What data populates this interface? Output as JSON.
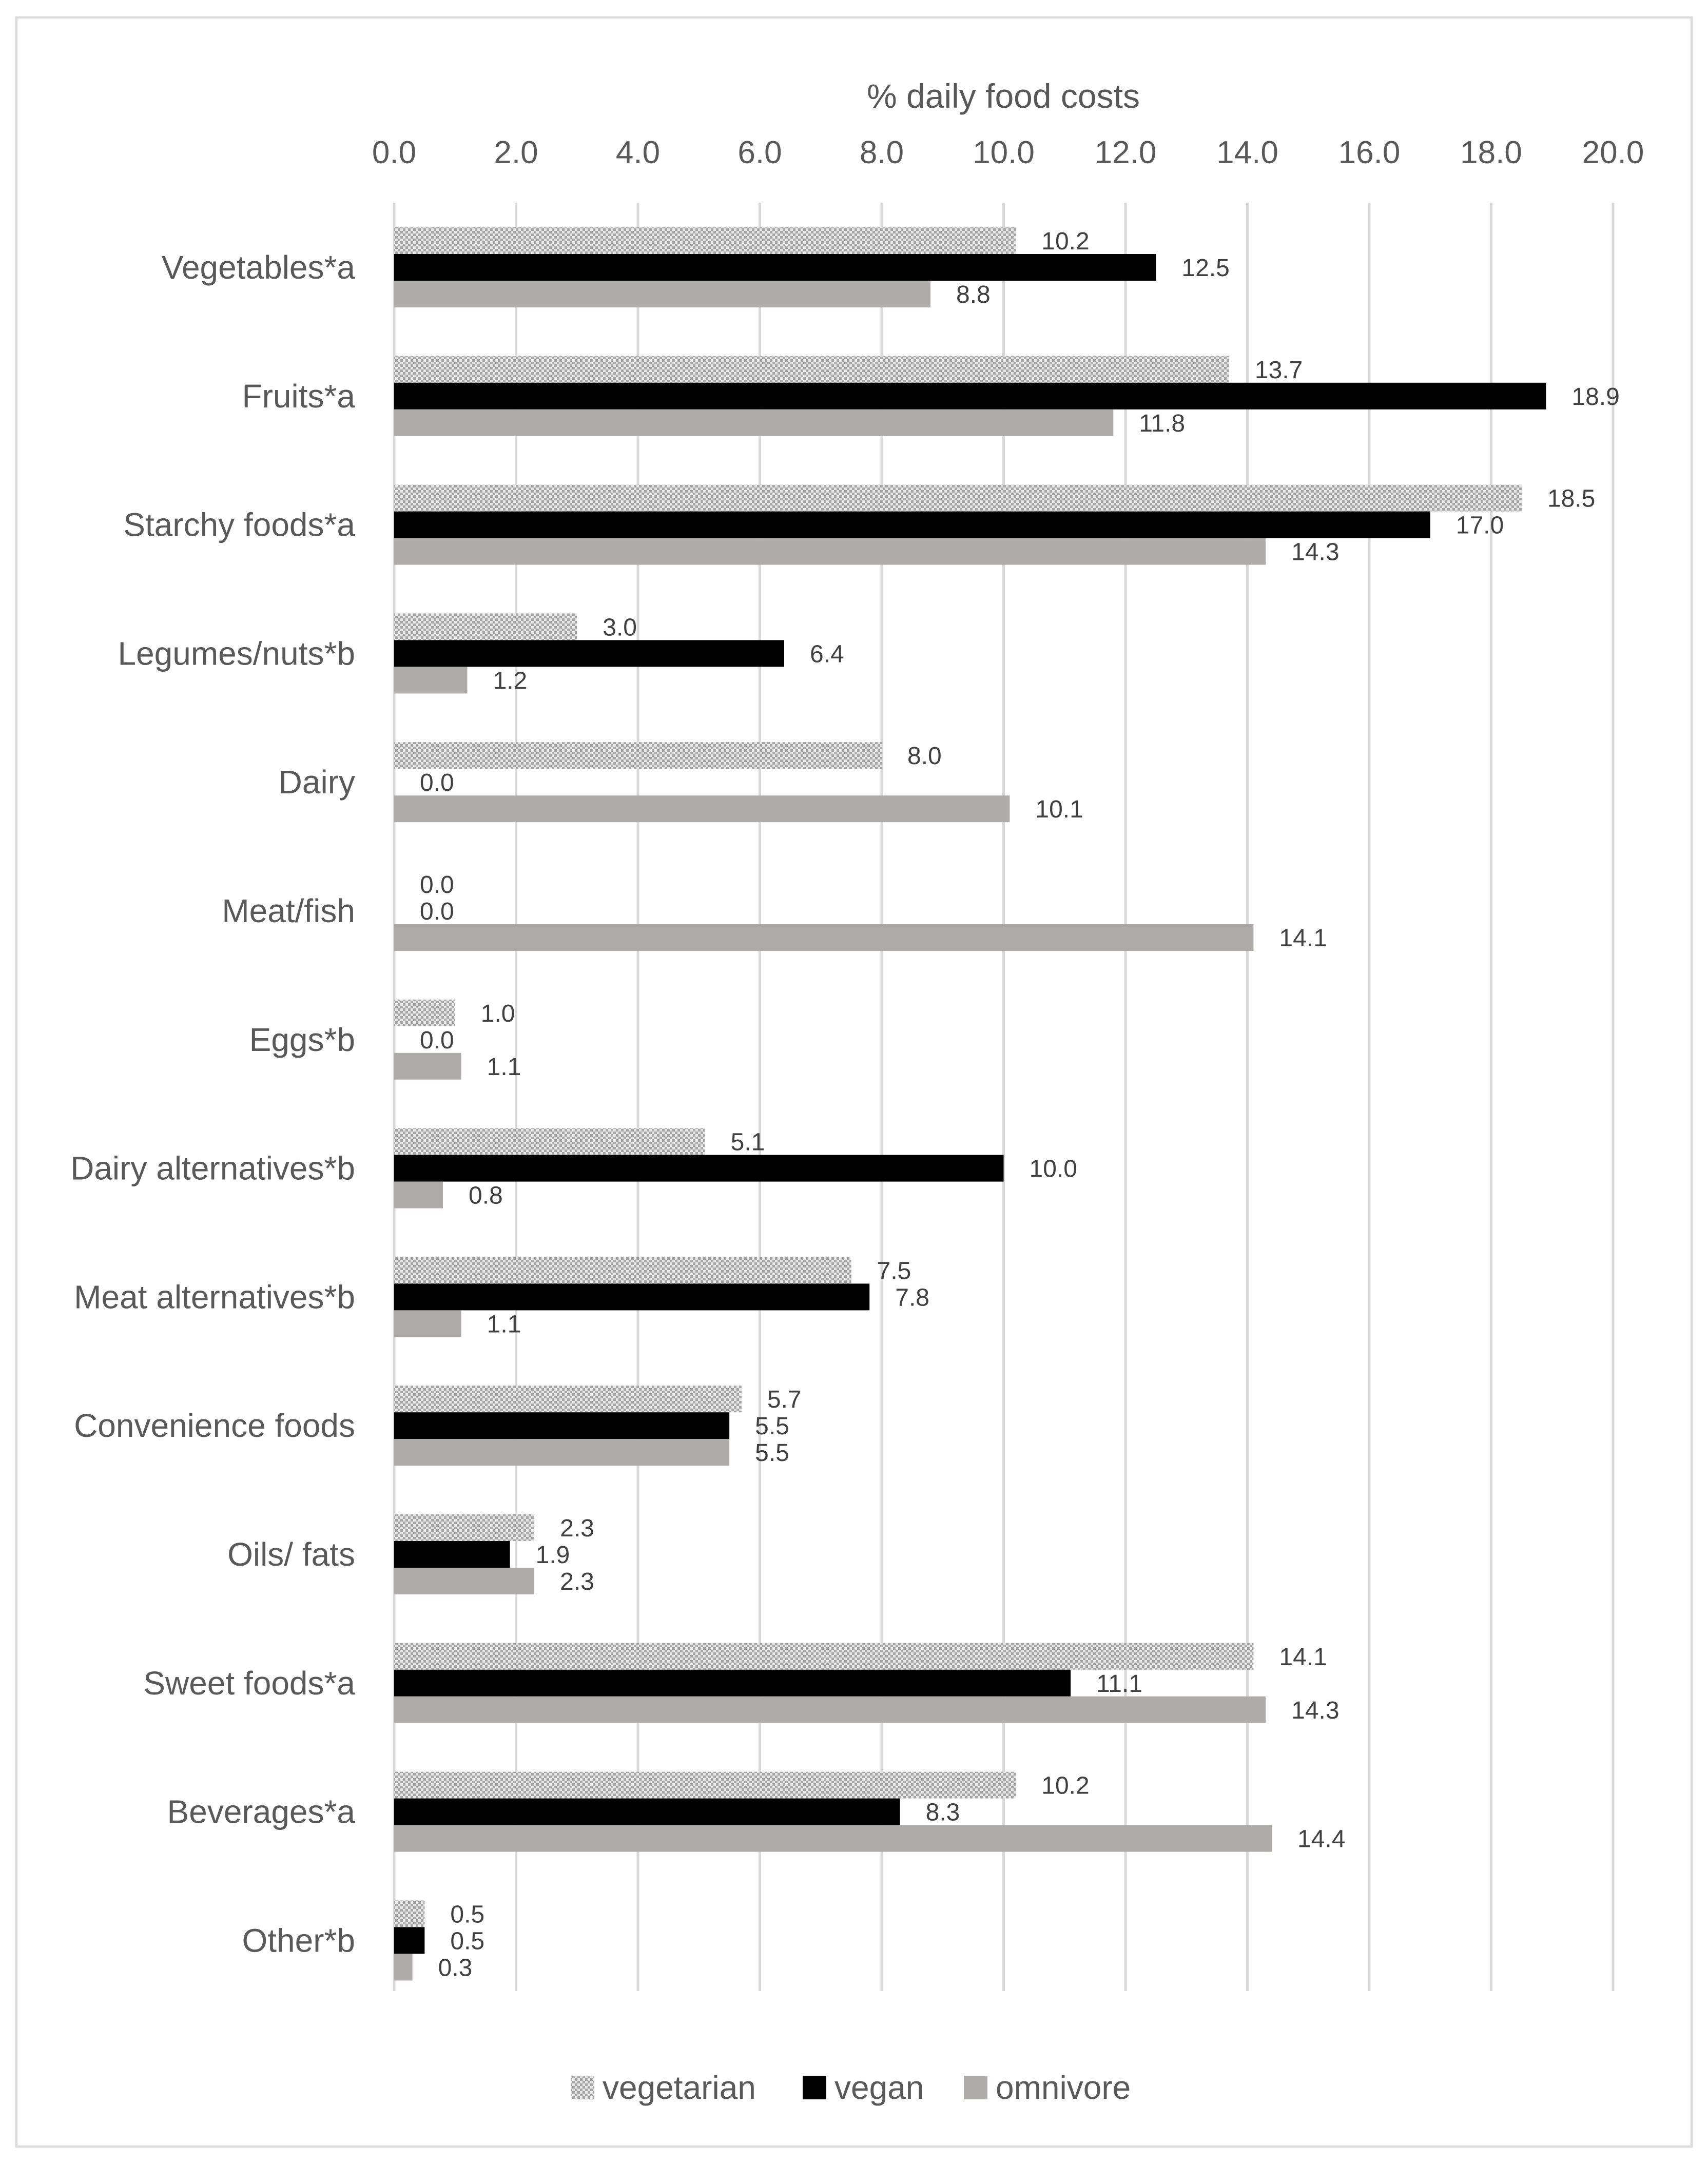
{
  "chart_data": {
    "type": "bar",
    "orientation": "horizontal",
    "title": "",
    "xlabel": "% daily food costs",
    "ylabel": "",
    "xlim": [
      0,
      20
    ],
    "x_ticks": [
      "0.0",
      "2.0",
      "4.0",
      "6.0",
      "8.0",
      "10.0",
      "12.0",
      "14.0",
      "16.0",
      "18.0",
      "20.0"
    ],
    "grid": true,
    "axis_position": "top",
    "legend_position": "bottom",
    "categories": [
      "Vegetables*a",
      "Fruits*a",
      "Starchy foods*a",
      "Legumes/nuts*b",
      "Dairy",
      "Meat/fish",
      "Eggs*b",
      "Dairy alternatives*b",
      "Meat alternatives*b",
      "Convenience foods",
      "Oils/ fats",
      "Sweet foods*a",
      "Beverages*a",
      "Other*b"
    ],
    "series": [
      {
        "name": "vegetarian",
        "color": "#c8c8c8",
        "pattern": "checker",
        "values": [
          10.2,
          13.7,
          18.5,
          3.0,
          8.0,
          0.0,
          1.0,
          5.1,
          7.5,
          5.7,
          2.3,
          14.1,
          10.2,
          0.5
        ],
        "labels": [
          "10.2",
          "13.7",
          "18.5",
          "3.0",
          "8.0",
          "0.0",
          "1.0",
          "5.1",
          "7.5",
          "5.7",
          "2.3",
          "14.1",
          "10.2",
          "0.5"
        ]
      },
      {
        "name": "vegan",
        "color": "#000000",
        "pattern": "solid",
        "values": [
          12.5,
          18.9,
          17.0,
          6.4,
          0.0,
          0.0,
          0.0,
          10.0,
          7.8,
          5.5,
          1.9,
          11.1,
          8.3,
          0.5
        ],
        "labels": [
          "12.5",
          "18.9",
          "17.0",
          "6.4",
          "0.0",
          "0.0",
          "0.0",
          "10.0",
          "7.8",
          "5.5",
          "1.9",
          "11.1",
          "8.3",
          "0.5"
        ]
      },
      {
        "name": "omnivore",
        "color": "#afabab",
        "pattern": "solid",
        "values": [
          8.8,
          11.8,
          14.3,
          1.2,
          10.1,
          14.1,
          1.1,
          0.8,
          1.1,
          5.5,
          2.3,
          14.3,
          14.4,
          0.3
        ],
        "labels": [
          "8.8",
          "11.8",
          "14.3",
          "1.2",
          "10.1",
          "14.1",
          "1.1",
          "0.8",
          "1.1",
          "5.5",
          "2.3",
          "14.3",
          "14.4",
          "0.3"
        ]
      }
    ]
  }
}
